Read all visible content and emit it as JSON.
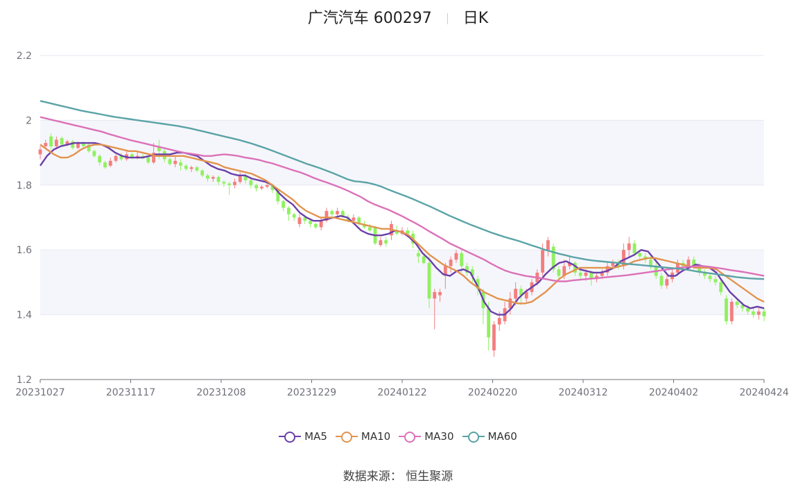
{
  "header": {
    "title": "广汽汽车 600297",
    "period": "日K"
  },
  "source": "数据来源： 恒生聚源",
  "colors": {
    "up": "#f47e7e",
    "down": "#8ff15f",
    "grid": "#e6e9f1",
    "band": "#f5f6fb",
    "axis": "#6e7079"
  },
  "chart_data": {
    "type": "candlestick",
    "x_tick_labels": [
      "20231027",
      "20231117",
      "20231208",
      "20231229",
      "20240122",
      "20240220",
      "20240312",
      "20240402",
      "20240424"
    ],
    "ylim": [
      1.2,
      2.2
    ],
    "y_ticks": [
      1.2,
      1.4,
      1.6,
      1.8,
      2,
      2.2
    ],
    "legend": [
      "MA5",
      "MA10",
      "MA30",
      "MA60"
    ],
    "series": [
      {
        "name": "MA5",
        "color": "#6a3fa8",
        "values": [
          1.86,
          1.89,
          1.91,
          1.92,
          1.925,
          1.93,
          1.93,
          1.93,
          1.93,
          1.925,
          1.915,
          1.9,
          1.89,
          1.885,
          1.885,
          1.885,
          1.89,
          1.895,
          1.895,
          1.895,
          1.9,
          1.9,
          1.895,
          1.89,
          1.875,
          1.86,
          1.85,
          1.845,
          1.835,
          1.83,
          1.83,
          1.82,
          1.815,
          1.81,
          1.8,
          1.775,
          1.755,
          1.74,
          1.715,
          1.7,
          1.69,
          1.69,
          1.695,
          1.7,
          1.705,
          1.7,
          1.68,
          1.66,
          1.65,
          1.645,
          1.645,
          1.65,
          1.66,
          1.655,
          1.64,
          1.62,
          1.59,
          1.57,
          1.545,
          1.525,
          1.52,
          1.535,
          1.54,
          1.53,
          1.49,
          1.44,
          1.41,
          1.4,
          1.4,
          1.42,
          1.45,
          1.47,
          1.485,
          1.5,
          1.525,
          1.545,
          1.56,
          1.565,
          1.555,
          1.54,
          1.535,
          1.53,
          1.53,
          1.535,
          1.545,
          1.565,
          1.575,
          1.585,
          1.6,
          1.595,
          1.57,
          1.545,
          1.52,
          1.52,
          1.535,
          1.545,
          1.555,
          1.55,
          1.545,
          1.53,
          1.5,
          1.47,
          1.45,
          1.43,
          1.42,
          1.425,
          1.42
        ]
      },
      {
        "name": "MA10",
        "color": "#e2934e",
        "values": [
          1.925,
          1.91,
          1.895,
          1.885,
          1.885,
          1.895,
          1.91,
          1.92,
          1.925,
          1.925,
          1.92,
          1.915,
          1.91,
          1.905,
          1.905,
          1.9,
          1.895,
          1.89,
          1.89,
          1.89,
          1.89,
          1.89,
          1.885,
          1.88,
          1.875,
          1.87,
          1.865,
          1.855,
          1.85,
          1.845,
          1.84,
          1.835,
          1.825,
          1.815,
          1.8,
          1.785,
          1.77,
          1.755,
          1.735,
          1.72,
          1.71,
          1.7,
          1.7,
          1.7,
          1.695,
          1.69,
          1.685,
          1.68,
          1.675,
          1.67,
          1.665,
          1.665,
          1.66,
          1.655,
          1.645,
          1.625,
          1.605,
          1.585,
          1.57,
          1.555,
          1.545,
          1.535,
          1.52,
          1.5,
          1.485,
          1.47,
          1.46,
          1.45,
          1.445,
          1.44,
          1.435,
          1.435,
          1.44,
          1.455,
          1.47,
          1.49,
          1.51,
          1.525,
          1.535,
          1.545,
          1.545,
          1.545,
          1.545,
          1.545,
          1.545,
          1.55,
          1.555,
          1.565,
          1.57,
          1.575,
          1.575,
          1.57,
          1.565,
          1.56,
          1.555,
          1.55,
          1.545,
          1.545,
          1.545,
          1.54,
          1.525,
          1.51,
          1.495,
          1.48,
          1.465,
          1.45,
          1.44
        ]
      },
      {
        "name": "MA30",
        "color": "#dc71b8",
        "values": [
          2.01,
          2.005,
          2.0,
          1.995,
          1.99,
          1.985,
          1.98,
          1.975,
          1.97,
          1.965,
          1.958,
          1.952,
          1.946,
          1.94,
          1.935,
          1.93,
          1.925,
          1.92,
          1.915,
          1.91,
          1.905,
          1.9,
          1.897,
          1.894,
          1.89,
          1.89,
          1.893,
          1.895,
          1.893,
          1.89,
          1.885,
          1.882,
          1.878,
          1.872,
          1.867,
          1.86,
          1.853,
          1.846,
          1.84,
          1.832,
          1.823,
          1.815,
          1.808,
          1.8,
          1.792,
          1.783,
          1.773,
          1.763,
          1.75,
          1.74,
          1.732,
          1.724,
          1.714,
          1.704,
          1.693,
          1.682,
          1.67,
          1.657,
          1.645,
          1.633,
          1.62,
          1.61,
          1.6,
          1.59,
          1.58,
          1.57,
          1.558,
          1.547,
          1.537,
          1.53,
          1.525,
          1.52,
          1.517,
          1.514,
          1.51,
          1.506,
          1.503,
          1.503,
          1.506,
          1.508,
          1.51,
          1.512,
          1.514,
          1.516,
          1.518,
          1.52,
          1.522,
          1.525,
          1.528,
          1.531,
          1.534,
          1.537,
          1.54,
          1.543,
          1.546,
          1.548,
          1.55,
          1.55,
          1.548,
          1.545,
          1.542,
          1.538,
          1.535,
          1.532,
          1.528,
          1.524,
          1.52
        ]
      },
      {
        "name": "MA60",
        "color": "#5aa3a6",
        "values": [
          2.06,
          2.055,
          2.05,
          2.045,
          2.04,
          2.035,
          2.03,
          2.026,
          2.022,
          2.018,
          2.014,
          2.01,
          2.007,
          2.004,
          2.001,
          1.998,
          1.995,
          1.992,
          1.989,
          1.986,
          1.983,
          1.979,
          1.975,
          1.97,
          1.965,
          1.96,
          1.955,
          1.95,
          1.945,
          1.94,
          1.934,
          1.928,
          1.921,
          1.914,
          1.906,
          1.898,
          1.89,
          1.882,
          1.874,
          1.866,
          1.859,
          1.852,
          1.844,
          1.836,
          1.827,
          1.818,
          1.812,
          1.81,
          1.807,
          1.802,
          1.795,
          1.786,
          1.778,
          1.77,
          1.762,
          1.753,
          1.744,
          1.735,
          1.725,
          1.715,
          1.705,
          1.696,
          1.687,
          1.678,
          1.67,
          1.662,
          1.654,
          1.647,
          1.64,
          1.634,
          1.628,
          1.621,
          1.614,
          1.607,
          1.6,
          1.594,
          1.588,
          1.583,
          1.578,
          1.574,
          1.57,
          1.567,
          1.565,
          1.563,
          1.561,
          1.559,
          1.557,
          1.555,
          1.553,
          1.551,
          1.549,
          1.547,
          1.545,
          1.543,
          1.541,
          1.538,
          1.534,
          1.531,
          1.528,
          1.525,
          1.522,
          1.519,
          1.516,
          1.514,
          1.512,
          1.511,
          1.51
        ]
      }
    ],
    "candles": [
      [
        1.895,
        1.91,
        1.88,
        1.92
      ],
      [
        1.92,
        1.93,
        1.91,
        1.94
      ],
      [
        1.95,
        1.92,
        1.91,
        1.96
      ],
      [
        1.92,
        1.94,
        1.91,
        1.95
      ],
      [
        1.945,
        1.925,
        1.92,
        1.95
      ],
      [
        1.925,
        1.935,
        1.92,
        1.94
      ],
      [
        1.935,
        1.915,
        1.91,
        1.94
      ],
      [
        1.915,
        1.93,
        1.91,
        1.935
      ],
      [
        1.93,
        1.92,
        1.915,
        1.935
      ],
      [
        1.925,
        1.905,
        1.9,
        1.93
      ],
      [
        1.905,
        1.89,
        1.885,
        1.91
      ],
      [
        1.89,
        1.87,
        1.86,
        1.895
      ],
      [
        1.87,
        1.855,
        1.85,
        1.875
      ],
      [
        1.86,
        1.875,
        1.855,
        1.885
      ],
      [
        1.875,
        1.89,
        1.87,
        1.895
      ],
      [
        1.89,
        1.88,
        1.875,
        1.9
      ],
      [
        1.88,
        1.895,
        1.875,
        1.905
      ],
      [
        1.895,
        1.885,
        1.88,
        1.9
      ],
      [
        1.885,
        1.89,
        1.88,
        1.9
      ],
      [
        1.89,
        1.885,
        1.88,
        1.895
      ],
      [
        1.885,
        1.87,
        1.865,
        1.89
      ],
      [
        1.87,
        1.9,
        1.865,
        1.93
      ],
      [
        1.92,
        1.905,
        1.88,
        1.94
      ],
      [
        1.905,
        1.88,
        1.87,
        1.91
      ],
      [
        1.88,
        1.865,
        1.86,
        1.885
      ],
      [
        1.865,
        1.875,
        1.855,
        1.89
      ],
      [
        1.87,
        1.86,
        1.845,
        1.88
      ],
      [
        1.86,
        1.85,
        1.845,
        1.865
      ],
      [
        1.85,
        1.855,
        1.84,
        1.86
      ],
      [
        1.855,
        1.845,
        1.84,
        1.86
      ],
      [
        1.845,
        1.83,
        1.825,
        1.85
      ],
      [
        1.83,
        1.82,
        1.81,
        1.835
      ],
      [
        1.82,
        1.825,
        1.81,
        1.83
      ],
      [
        1.825,
        1.81,
        1.8,
        1.83
      ],
      [
        1.81,
        1.805,
        1.795,
        1.815
      ],
      [
        1.805,
        1.8,
        1.77,
        1.81
      ],
      [
        1.8,
        1.81,
        1.79,
        1.82
      ],
      [
        1.81,
        1.83,
        1.805,
        1.84
      ],
      [
        1.83,
        1.815,
        1.805,
        1.835
      ],
      [
        1.815,
        1.8,
        1.79,
        1.82
      ],
      [
        1.8,
        1.79,
        1.78,
        1.805
      ],
      [
        1.79,
        1.795,
        1.785,
        1.8
      ],
      [
        1.795,
        1.8,
        1.79,
        1.805
      ],
      [
        1.8,
        1.785,
        1.775,
        1.805
      ],
      [
        1.785,
        1.75,
        1.74,
        1.79
      ],
      [
        1.75,
        1.73,
        1.72,
        1.755
      ],
      [
        1.73,
        1.71,
        1.69,
        1.735
      ],
      [
        1.71,
        1.7,
        1.69,
        1.715
      ],
      [
        1.68,
        1.7,
        1.67,
        1.71
      ],
      [
        1.7,
        1.69,
        1.68,
        1.705
      ],
      [
        1.69,
        1.68,
        1.67,
        1.695
      ],
      [
        1.68,
        1.67,
        1.665,
        1.685
      ],
      [
        1.67,
        1.69,
        1.66,
        1.7
      ],
      [
        1.69,
        1.72,
        1.685,
        1.73
      ],
      [
        1.72,
        1.71,
        1.7,
        1.725
      ],
      [
        1.71,
        1.72,
        1.7,
        1.73
      ],
      [
        1.72,
        1.705,
        1.7,
        1.725
      ],
      [
        1.7,
        1.69,
        1.685,
        1.71
      ],
      [
        1.69,
        1.7,
        1.68,
        1.71
      ],
      [
        1.7,
        1.68,
        1.675,
        1.705
      ],
      [
        1.68,
        1.67,
        1.665,
        1.69
      ],
      [
        1.67,
        1.66,
        1.655,
        1.68
      ],
      [
        1.67,
        1.62,
        1.615,
        1.675
      ],
      [
        1.615,
        1.63,
        1.61,
        1.64
      ],
      [
        1.63,
        1.62,
        1.61,
        1.64
      ],
      [
        1.645,
        1.68,
        1.63,
        1.69
      ],
      [
        1.66,
        1.65,
        1.645,
        1.675
      ],
      [
        1.65,
        1.66,
        1.645,
        1.67
      ],
      [
        1.66,
        1.65,
        1.64,
        1.67
      ],
      [
        1.65,
        1.62,
        1.605,
        1.66
      ],
      [
        1.59,
        1.58,
        1.56,
        1.6
      ],
      [
        1.58,
        1.56,
        1.555,
        1.59
      ],
      [
        1.56,
        1.45,
        1.42,
        1.58
      ],
      [
        1.45,
        1.47,
        1.355,
        1.48
      ],
      [
        1.46,
        1.47,
        1.44,
        1.48
      ],
      [
        1.52,
        1.55,
        1.48,
        1.56
      ],
      [
        1.55,
        1.57,
        1.53,
        1.58
      ],
      [
        1.57,
        1.59,
        1.56,
        1.6
      ],
      [
        1.59,
        1.55,
        1.53,
        1.6
      ],
      [
        1.55,
        1.53,
        1.52,
        1.56
      ],
      [
        1.54,
        1.52,
        1.5,
        1.55
      ],
      [
        1.51,
        1.48,
        1.46,
        1.52
      ],
      [
        1.47,
        1.42,
        1.37,
        1.48
      ],
      [
        1.42,
        1.33,
        1.29,
        1.44
      ],
      [
        1.29,
        1.37,
        1.27,
        1.38
      ],
      [
        1.37,
        1.39,
        1.35,
        1.41
      ],
      [
        1.38,
        1.42,
        1.37,
        1.44
      ],
      [
        1.42,
        1.45,
        1.4,
        1.47
      ],
      [
        1.45,
        1.48,
        1.43,
        1.5
      ],
      [
        1.48,
        1.46,
        1.43,
        1.49
      ],
      [
        1.45,
        1.47,
        1.44,
        1.48
      ],
      [
        1.47,
        1.5,
        1.46,
        1.51
      ],
      [
        1.5,
        1.53,
        1.49,
        1.54
      ],
      [
        1.53,
        1.6,
        1.52,
        1.62
      ],
      [
        1.6,
        1.63,
        1.58,
        1.64
      ],
      [
        1.61,
        1.54,
        1.53,
        1.62
      ],
      [
        1.54,
        1.52,
        1.51,
        1.55
      ],
      [
        1.52,
        1.55,
        1.51,
        1.57
      ],
      [
        1.55,
        1.56,
        1.54,
        1.58
      ],
      [
        1.56,
        1.53,
        1.52,
        1.565
      ],
      [
        1.53,
        1.52,
        1.51,
        1.54
      ],
      [
        1.52,
        1.53,
        1.505,
        1.54
      ],
      [
        1.53,
        1.51,
        1.49,
        1.535
      ],
      [
        1.51,
        1.52,
        1.5,
        1.53
      ],
      [
        1.52,
        1.53,
        1.51,
        1.54
      ],
      [
        1.53,
        1.55,
        1.52,
        1.56
      ],
      [
        1.55,
        1.56,
        1.54,
        1.57
      ],
      [
        1.56,
        1.55,
        1.54,
        1.57
      ],
      [
        1.55,
        1.6,
        1.54,
        1.62
      ],
      [
        1.6,
        1.62,
        1.58,
        1.64
      ],
      [
        1.62,
        1.59,
        1.58,
        1.63
      ],
      [
        1.59,
        1.58,
        1.57,
        1.6
      ],
      [
        1.58,
        1.57,
        1.56,
        1.59
      ],
      [
        1.57,
        1.55,
        1.54,
        1.58
      ],
      [
        1.55,
        1.52,
        1.51,
        1.56
      ],
      [
        1.52,
        1.49,
        1.48,
        1.53
      ],
      [
        1.49,
        1.51,
        1.48,
        1.52
      ],
      [
        1.51,
        1.53,
        1.5,
        1.54
      ],
      [
        1.53,
        1.56,
        1.52,
        1.57
      ],
      [
        1.56,
        1.55,
        1.54,
        1.57
      ],
      [
        1.55,
        1.57,
        1.54,
        1.58
      ],
      [
        1.57,
        1.55,
        1.54,
        1.58
      ],
      [
        1.55,
        1.53,
        1.52,
        1.56
      ],
      [
        1.53,
        1.52,
        1.51,
        1.54
      ],
      [
        1.52,
        1.51,
        1.5,
        1.53
      ],
      [
        1.51,
        1.5,
        1.49,
        1.52
      ],
      [
        1.5,
        1.47,
        1.46,
        1.51
      ],
      [
        1.45,
        1.38,
        1.37,
        1.46
      ],
      [
        1.38,
        1.44,
        1.37,
        1.45
      ],
      [
        1.44,
        1.43,
        1.42,
        1.45
      ],
      [
        1.43,
        1.42,
        1.41,
        1.44
      ],
      [
        1.42,
        1.41,
        1.4,
        1.43
      ],
      [
        1.41,
        1.4,
        1.39,
        1.42
      ],
      [
        1.4,
        1.41,
        1.385,
        1.42
      ],
      [
        1.41,
        1.395,
        1.38,
        1.42
      ]
    ]
  }
}
